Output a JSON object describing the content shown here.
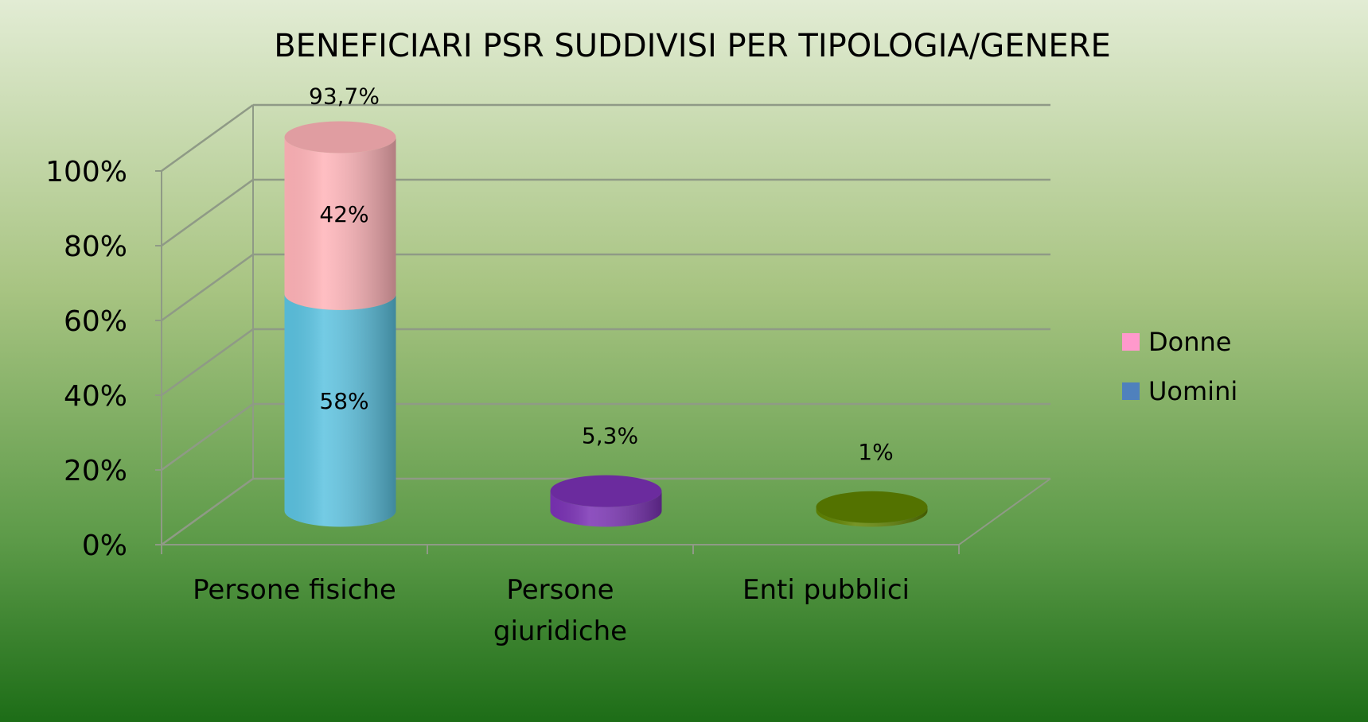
{
  "chart_data": {
    "type": "bar3d_stacked",
    "title": "BENEFICIARI PSR SUDDIVISI PER TIPOLOGIA/GENERE",
    "categories": [
      "Persone fisiche",
      "Persone giuridiche",
      "Enti pubblici"
    ],
    "series": [
      {
        "name": "Uomini",
        "color": "#5bc2e0",
        "legend_color": "#4f81bd",
        "values": [
          58,
          null,
          null
        ],
        "value_labels": [
          "58%",
          null,
          null
        ]
      },
      {
        "name": "Donne",
        "color": "#ffb3b8",
        "legend_color": "#ff99cc",
        "values": [
          42,
          null,
          null
        ],
        "value_labels": [
          "42%",
          null,
          null
        ]
      }
    ],
    "totals": {
      "values": [
        93.7,
        5.3,
        1
      ],
      "value_labels": [
        "93,7%",
        "5,3%",
        "1%"
      ],
      "colors": [
        null,
        "#7a32b4",
        "#5f8200"
      ]
    },
    "ylim": [
      0,
      100
    ],
    "yticks": [
      {
        "value": 0,
        "label": "0%"
      },
      {
        "value": 20,
        "label": "20%"
      },
      {
        "value": 40,
        "label": "40%"
      },
      {
        "value": 60,
        "label": "60%"
      },
      {
        "value": 80,
        "label": "80%"
      },
      {
        "value": 100,
        "label": "100%"
      }
    ],
    "grid": true,
    "legend": "right"
  }
}
